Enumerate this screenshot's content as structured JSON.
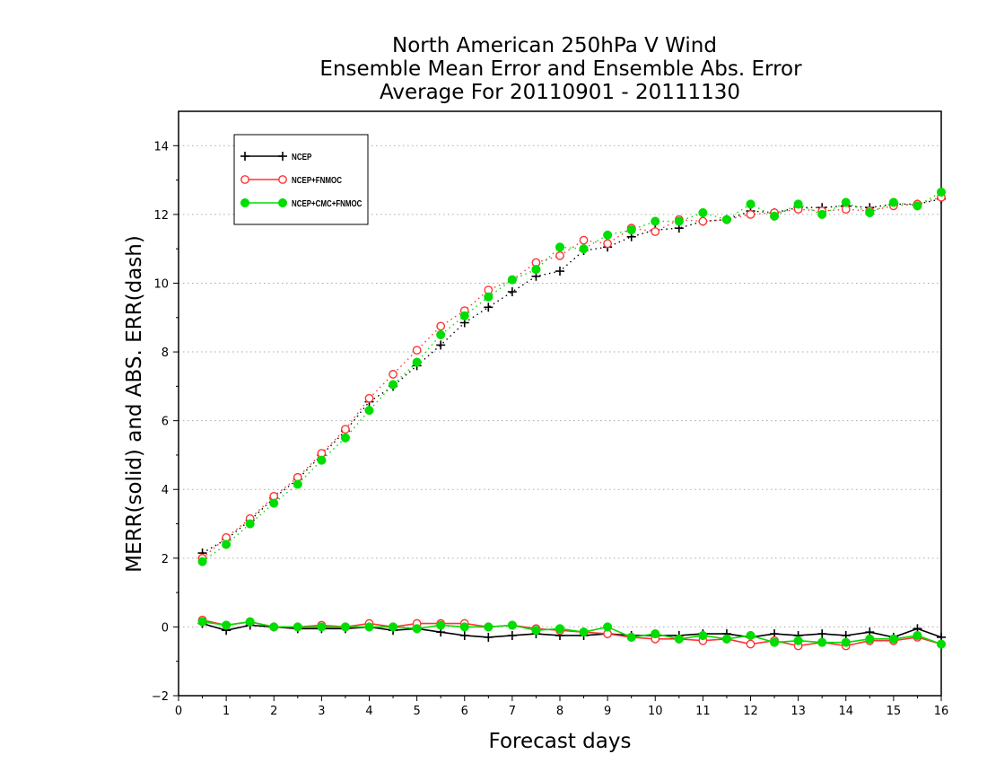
{
  "chart_data": {
    "type": "line",
    "title": [
      "North American 250hPa V Wind",
      "Ensemble Mean Error and Ensemble Abs. Error",
      "Average For 20110901 - 20111130"
    ],
    "xlabel": "Forecast days",
    "ylabel": "MERR(solid) and ABS. ERR(dash)",
    "xlim": [
      0,
      16
    ],
    "ylim": [
      -2,
      15
    ],
    "xticks": [
      0,
      1,
      2,
      3,
      4,
      5,
      6,
      7,
      8,
      9,
      10,
      11,
      12,
      13,
      14,
      15,
      16
    ],
    "yticks": [
      -2,
      0,
      2,
      4,
      6,
      8,
      10,
      12,
      14
    ],
    "ygrid": true,
    "legend_position": "top-left",
    "x": [
      0.5,
      1,
      1.5,
      2,
      2.5,
      3,
      3.5,
      4,
      4.5,
      5,
      5.5,
      6,
      6.5,
      7,
      7.5,
      8,
      8.5,
      9,
      9.5,
      10,
      10.5,
      11,
      11.5,
      12,
      12.5,
      13,
      13.5,
      14,
      14.5,
      15,
      15.5,
      16
    ],
    "series": [
      {
        "name": "NCEP",
        "color": "#000000",
        "marker": "plus",
        "abs_err": [
          2.15,
          2.55,
          3.1,
          3.75,
          4.3,
          5.0,
          5.7,
          6.55,
          7.0,
          7.6,
          8.2,
          8.85,
          9.3,
          9.75,
          10.2,
          10.35,
          10.95,
          11.05,
          11.35,
          11.55,
          11.6,
          11.8,
          11.85,
          12.1,
          12.05,
          12.2,
          12.2,
          12.25,
          12.2,
          12.3,
          12.3,
          12.45
        ],
        "mean_err": [
          0.1,
          -0.1,
          0.05,
          0.0,
          -0.05,
          -0.05,
          -0.05,
          0.0,
          -0.1,
          -0.05,
          -0.15,
          -0.25,
          -0.3,
          -0.25,
          -0.2,
          -0.25,
          -0.25,
          -0.2,
          -0.25,
          -0.25,
          -0.25,
          -0.2,
          -0.2,
          -0.3,
          -0.2,
          -0.25,
          -0.2,
          -0.25,
          -0.15,
          -0.3,
          -0.05,
          -0.3
        ]
      },
      {
        "name": "NCEP+FNMOC",
        "color": "#ff3333",
        "marker": "circle",
        "abs_err": [
          2.0,
          2.6,
          3.15,
          3.8,
          4.35,
          5.05,
          5.75,
          6.65,
          7.35,
          8.05,
          8.75,
          9.2,
          9.8,
          10.1,
          10.6,
          10.8,
          11.25,
          11.15,
          11.6,
          11.5,
          11.85,
          11.8,
          11.85,
          12.0,
          12.05,
          12.15,
          12.1,
          12.15,
          12.1,
          12.25,
          12.3,
          12.5
        ],
        "mean_err": [
          0.2,
          0.05,
          0.15,
          0.0,
          0.0,
          0.05,
          0.0,
          0.1,
          0.0,
          0.1,
          0.1,
          0.1,
          0.0,
          0.05,
          -0.05,
          -0.1,
          -0.15,
          -0.2,
          -0.3,
          -0.35,
          -0.35,
          -0.4,
          -0.35,
          -0.5,
          -0.4,
          -0.55,
          -0.45,
          -0.55,
          -0.4,
          -0.4,
          -0.3,
          -0.5
        ]
      },
      {
        "name": "NCEP+CMC+FNMOC",
        "color": "#00dd00",
        "marker": "dot",
        "abs_err": [
          1.9,
          2.4,
          3.0,
          3.6,
          4.15,
          4.85,
          5.5,
          6.3,
          7.05,
          7.7,
          8.5,
          9.05,
          9.6,
          10.1,
          10.4,
          11.05,
          11.0,
          11.4,
          11.55,
          11.8,
          11.8,
          12.05,
          11.85,
          12.3,
          11.95,
          12.3,
          12.0,
          12.35,
          12.05,
          12.35,
          12.25,
          12.65
        ],
        "mean_err": [
          0.15,
          0.05,
          0.15,
          0.0,
          0.0,
          0.0,
          0.0,
          0.0,
          0.0,
          -0.05,
          0.05,
          0.0,
          0.0,
          0.05,
          -0.1,
          -0.05,
          -0.15,
          0.0,
          -0.3,
          -0.2,
          -0.35,
          -0.25,
          -0.35,
          -0.25,
          -0.45,
          -0.4,
          -0.45,
          -0.45,
          -0.35,
          -0.35,
          -0.25,
          -0.5
        ]
      }
    ]
  }
}
